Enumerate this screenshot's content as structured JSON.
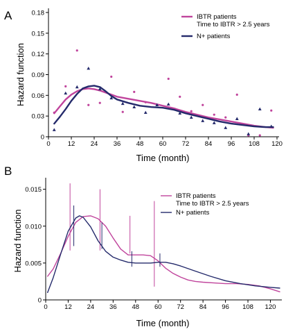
{
  "colors": {
    "ibtr": "#c0449c",
    "nplus": "#242a6b",
    "axis": "#000000"
  },
  "chart_data": [
    {
      "panel_label": "A",
      "type": "line",
      "ylabel": "Hazard function",
      "xlabel": "Time (month)",
      "xlim": [
        0,
        120
      ],
      "ylim": [
        0,
        0.18
      ],
      "xticks": [
        "0",
        "12",
        "24",
        "36",
        "48",
        "60",
        "72",
        "84",
        "96",
        "108",
        "120"
      ],
      "yticks": [
        "0",
        "0.03",
        "0.06",
        "0.09",
        "0.12",
        "0.15",
        "0.18"
      ],
      "legend_position": "top-right",
      "legend": [
        "IBTR patients\nTime to IBTR > 2.5 years",
        "N+ patients"
      ],
      "series": [
        {
          "name": "IBTR patients\nTime to IBTR > 2.5 years",
          "color": "ibtr",
          "line_x": [
            3,
            6,
            9,
            12,
            15,
            18,
            21,
            24,
            27,
            30,
            33,
            36,
            42,
            48,
            54,
            60,
            66,
            72,
            78,
            84,
            90,
            96,
            102,
            108,
            114,
            118
          ],
          "line_y": [
            0.034,
            0.044,
            0.054,
            0.061,
            0.066,
            0.069,
            0.07,
            0.069,
            0.067,
            0.064,
            0.061,
            0.058,
            0.055,
            0.052,
            0.049,
            0.045,
            0.041,
            0.036,
            0.032,
            0.028,
            0.025,
            0.022,
            0.019,
            0.016,
            0.014,
            0.013
          ],
          "points_x": [
            3,
            9,
            15,
            21,
            27,
            33,
            39,
            45,
            51,
            57,
            63,
            69,
            75,
            81,
            87,
            93,
            99,
            105,
            111,
            117
          ],
          "points_y": [
            0.035,
            0.073,
            0.125,
            0.046,
            0.049,
            0.087,
            0.036,
            0.065,
            0.05,
            0.046,
            0.084,
            0.058,
            0.037,
            0.046,
            0.032,
            0.028,
            0.061,
            0.002,
            0.002,
            0.038
          ]
        },
        {
          "name": "N+ patients",
          "color": "nplus",
          "line_x": [
            3,
            6,
            9,
            12,
            15,
            18,
            21,
            24,
            27,
            30,
            33,
            36,
            42,
            48,
            54,
            60,
            66,
            72,
            78,
            84,
            90,
            96,
            102,
            108,
            114,
            118
          ],
          "line_y": [
            0.019,
            0.029,
            0.04,
            0.052,
            0.062,
            0.07,
            0.073,
            0.074,
            0.072,
            0.066,
            0.059,
            0.054,
            0.049,
            0.045,
            0.043,
            0.042,
            0.039,
            0.034,
            0.03,
            0.026,
            0.022,
            0.019,
            0.017,
            0.015,
            0.014,
            0.014
          ],
          "points_x": [
            3,
            9,
            15,
            21,
            27,
            33,
            39,
            45,
            51,
            57,
            63,
            69,
            75,
            81,
            87,
            93,
            99,
            105,
            111,
            117
          ],
          "points_y": [
            0.01,
            0.063,
            0.072,
            0.099,
            0.069,
            0.056,
            0.048,
            0.043,
            0.035,
            0.046,
            0.047,
            0.034,
            0.028,
            0.023,
            0.02,
            0.013,
            0.026,
            0.004,
            0.04,
            0.015
          ]
        }
      ]
    },
    {
      "panel_label": "B",
      "type": "line",
      "ylabel": "Hazard function",
      "xlabel": "Time (month)",
      "xlim": [
        0,
        125
      ],
      "ylim": [
        0,
        0.016
      ],
      "xticks": [
        "0",
        "12",
        "24",
        "36",
        "48",
        "60",
        "72",
        "84",
        "96",
        "108",
        "120"
      ],
      "yticks": [
        "0",
        "0.005",
        "0.010",
        "0.015"
      ],
      "legend_position": "top-right",
      "legend": [
        "IBTR patients\nTime to IBTR > 2.5 years",
        "N+ patients"
      ],
      "series": [
        {
          "name": "IBTR patients\nTime to IBTR > 2.5 years",
          "color": "ibtr",
          "line_x": [
            1,
            4,
            8,
            12,
            16,
            20,
            24,
            28,
            32,
            36,
            40,
            44,
            48,
            52,
            56,
            60,
            64,
            68,
            72,
            76,
            80,
            84,
            90,
            96,
            102,
            108,
            114,
            120,
            125
          ],
          "line_y": [
            0.0032,
            0.0042,
            0.0063,
            0.0086,
            0.0105,
            0.0113,
            0.0114,
            0.011,
            0.01,
            0.0084,
            0.0069,
            0.0061,
            0.0061,
            0.0061,
            0.006,
            0.0053,
            0.0043,
            0.0036,
            0.0031,
            0.0027,
            0.0025,
            0.0024,
            0.0023,
            0.0022,
            0.0022,
            0.0021,
            0.0019,
            0.0015,
            0.0011
          ],
          "ci_x": [
            13,
            29,
            45,
            58
          ],
          "ci_low": [
            0.0067,
            0.0067,
            0.0063,
            0.0018
          ],
          "ci_high": [
            0.0158,
            0.015,
            0.0114,
            0.0134
          ]
        },
        {
          "name": "N+ patients",
          "color": "nplus",
          "line_x": [
            1,
            4,
            8,
            12,
            16,
            18,
            20,
            24,
            28,
            32,
            36,
            40,
            44,
            48,
            52,
            56,
            60,
            64,
            68,
            72,
            80,
            88,
            96,
            104,
            112,
            120,
            125
          ],
          "line_y": [
            0.001,
            0.003,
            0.0062,
            0.0093,
            0.0111,
            0.0114,
            0.0112,
            0.0099,
            0.008,
            0.0066,
            0.0058,
            0.0054,
            0.0051,
            0.005,
            0.005,
            0.005,
            0.0051,
            0.0051,
            0.0049,
            0.0046,
            0.0039,
            0.0032,
            0.0026,
            0.0022,
            0.0019,
            0.0017,
            0.0016
          ],
          "ci_x": [
            15,
            30,
            46,
            61
          ],
          "ci_low": [
            0.0073,
            0.0069,
            0.0045,
            0.0045
          ],
          "ci_high": [
            0.0128,
            0.0105,
            0.0066,
            0.0063
          ]
        }
      ]
    }
  ]
}
